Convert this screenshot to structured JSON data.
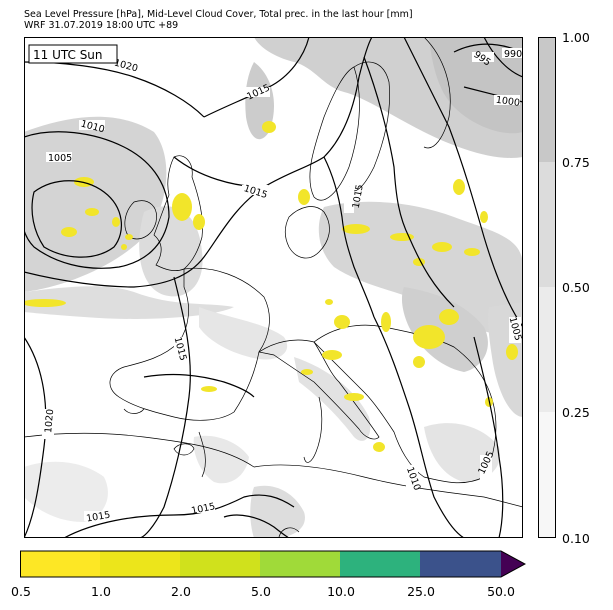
{
  "header": {
    "line1": "Sea Level Pressure [hPa], Mid-Level Cloud Cover, Total prec. in the last hour [mm]",
    "line2": "WRF 31.07.2019 18:00 UTC +89"
  },
  "map": {
    "time_label": "11 UTC Sun",
    "isobar_labels": [
      "1020",
      "1015",
      "1010",
      "1005",
      "1015",
      "1015",
      "995",
      "990",
      "1000",
      "1015",
      "1005",
      "1020",
      "1010",
      "1005",
      "1015",
      "1015"
    ]
  },
  "cloud_colorbar": {
    "ticks": [
      "1.00",
      "0.75",
      "0.50",
      "0.25",
      "0.10"
    ],
    "colors": [
      "#c8c8c8",
      "#dcdcdc",
      "#ebebeb",
      "#f7f7f7"
    ]
  },
  "precip_colorbar": {
    "ticks": [
      "0.5",
      "1.0",
      "2.0",
      "5.0",
      "10.0",
      "25.0",
      "50.0"
    ],
    "colors": [
      "#fde725",
      "#ece51b",
      "#d0e11c",
      "#a0da39",
      "#4ac16d",
      "#2db27d",
      "#3b528b",
      "#440154"
    ]
  },
  "colors": {
    "land": "#ffffff",
    "cloud_light": "#e6e6e6",
    "cloud_heavy": "#c8c8c8",
    "precip": "#f4e61e",
    "isobar": "#000000"
  }
}
